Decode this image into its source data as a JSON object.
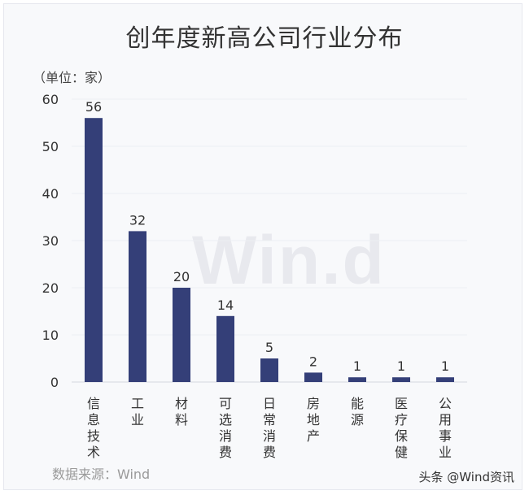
{
  "title": "创年度新高公司行业分布",
  "unit_label": "（单位：家）",
  "source": "数据来源：Wind",
  "credit": "头条 @Wind资讯",
  "watermark": "Win.d",
  "colors": {
    "bar": "#343f78",
    "grid": "#eceef3",
    "tick_text": "#333333"
  },
  "chart_data": {
    "type": "bar",
    "title": "创年度新高公司行业分布",
    "xlabel": "",
    "ylabel": "（单位：家）",
    "categories": [
      "信息技术",
      "工业",
      "材料",
      "可选消费",
      "日常消费",
      "房地产",
      "能源",
      "医疗保健",
      "公用事业"
    ],
    "values": [
      56,
      32,
      20,
      14,
      5,
      2,
      1,
      1,
      1
    ],
    "ylim": [
      0,
      60
    ],
    "yticks": [
      0,
      10,
      20,
      30,
      40,
      50,
      60
    ],
    "grid": true,
    "legend": "none"
  }
}
